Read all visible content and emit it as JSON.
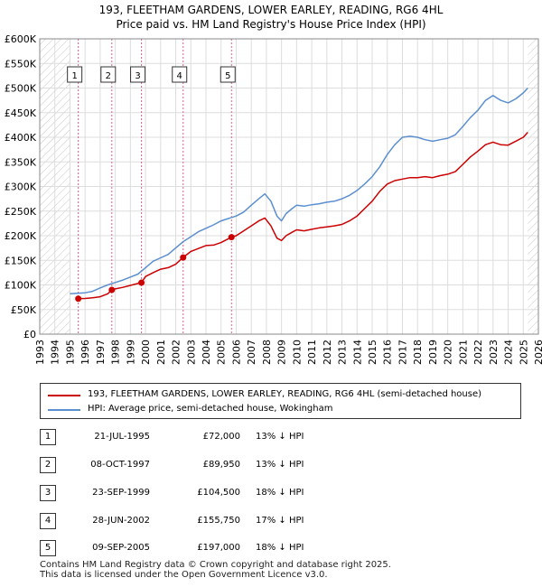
{
  "title_line1": "193, FLEETHAM GARDENS, LOWER EARLEY, READING, RG6 4HL",
  "title_line2": "Price paid vs. HM Land Registry's House Price Index (HPI)",
  "colors": {
    "property": "#cc0000",
    "hpi": "#5b8fcf",
    "hatch": "#c0c0c0",
    "marker_line": "#e06080"
  },
  "legend": {
    "property": "193, FLEETHAM GARDENS, LOWER EARLEY, READING, RG6 4HL (semi-detached house)",
    "hpi": "HPI: Average price, semi-detached house, Wokingham"
  },
  "transactions": [
    {
      "num": "1",
      "date": "21-JUL-1995",
      "price": "£72,000",
      "hpi": "13% ↓ HPI"
    },
    {
      "num": "2",
      "date": "08-OCT-1997",
      "price": "£89,950",
      "hpi": "13% ↓ HPI"
    },
    {
      "num": "3",
      "date": "23-SEP-1999",
      "price": "£104,500",
      "hpi": "18% ↓ HPI"
    },
    {
      "num": "4",
      "date": "28-JUN-2002",
      "price": "£155,750",
      "hpi": "17% ↓ HPI"
    },
    {
      "num": "5",
      "date": "09-SEP-2005",
      "price": "£197,000",
      "hpi": "18% ↓ HPI"
    }
  ],
  "footer_line1": "Contains HM Land Registry data © Crown copyright and database right 2025.",
  "footer_line2": "This data is licensed under the Open Government Licence v3.0.",
  "chart_data": {
    "type": "line",
    "title": "193, FLEETHAM GARDENS, LOWER EARLEY, READING, RG6 4HL",
    "subtitle": "Price paid vs. HM Land Registry's House Price Index (HPI)",
    "xlim": [
      1993,
      2026
    ],
    "ylim": [
      0,
      600000
    ],
    "x_ticks": [
      1993,
      1994,
      1995,
      1996,
      1997,
      1998,
      1999,
      2000,
      2001,
      2002,
      2003,
      2004,
      2005,
      2006,
      2007,
      2008,
      2009,
      2010,
      2011,
      2012,
      2013,
      2014,
      2015,
      2016,
      2017,
      2018,
      2019,
      2020,
      2021,
      2022,
      2023,
      2024,
      2025,
      2026
    ],
    "y_ticks": [
      0,
      50000,
      100000,
      150000,
      200000,
      250000,
      300000,
      350000,
      400000,
      450000,
      500000,
      550000,
      600000
    ],
    "y_tick_labels": [
      "£0",
      "£50K",
      "£100K",
      "£150K",
      "£200K",
      "£250K",
      "£300K",
      "£350K",
      "£400K",
      "£450K",
      "£500K",
      "£550K",
      "£600K"
    ],
    "hatched_ranges": [
      [
        1993,
        1995.0
      ],
      [
        2025.3,
        2026
      ]
    ],
    "grid": true,
    "series": [
      {
        "name": "193, FLEETHAM GARDENS, LOWER EARLEY, READING, RG6 4HL (semi-detached house)",
        "x": [
          1995.55,
          1996.0,
          1996.5,
          1997.0,
          1997.5,
          1997.77,
          1998.0,
          1998.5,
          1999.0,
          1999.5,
          1999.73,
          2000.0,
          2000.5,
          2001.0,
          2001.5,
          2002.0,
          2002.49,
          2003.0,
          2003.5,
          2004.0,
          2004.5,
          2005.0,
          2005.69,
          2006.0,
          2006.5,
          2007.0,
          2007.5,
          2007.9,
          2008.3,
          2008.7,
          2009.0,
          2009.3,
          2009.7,
          2010.0,
          2010.5,
          2011.0,
          2011.5,
          2012.0,
          2012.5,
          2013.0,
          2013.5,
          2014.0,
          2014.5,
          2015.0,
          2015.5,
          2016.0,
          2016.5,
          2017.0,
          2017.5,
          2018.0,
          2018.5,
          2019.0,
          2019.5,
          2020.0,
          2020.5,
          2021.0,
          2021.5,
          2022.0,
          2022.5,
          2023.0,
          2023.5,
          2024.0,
          2024.5,
          2025.0,
          2025.3
        ],
        "values": [
          72000,
          72500,
          74000,
          76000,
          82000,
          89950,
          92000,
          95000,
          99000,
          103000,
          104500,
          117000,
          125000,
          132000,
          135000,
          142000,
          155750,
          168000,
          174000,
          180000,
          181000,
          186000,
          197000,
          200000,
          210000,
          220000,
          230000,
          236000,
          220000,
          195000,
          190000,
          200000,
          207000,
          212000,
          210000,
          213000,
          216000,
          218000,
          220000,
          223000,
          230000,
          240000,
          255000,
          270000,
          290000,
          305000,
          312000,
          315000,
          318000,
          318000,
          320000,
          318000,
          322000,
          325000,
          330000,
          345000,
          360000,
          372000,
          385000,
          390000,
          385000,
          384000,
          392000,
          400000,
          410000
        ]
      },
      {
        "name": "HPI: Average price, semi-detached house, Wokingham",
        "x": [
          1995.0,
          1995.5,
          1996.0,
          1996.5,
          1997.0,
          1997.5,
          1998.0,
          1998.5,
          1999.0,
          1999.5,
          2000.0,
          2000.5,
          2001.0,
          2001.5,
          2002.0,
          2002.5,
          2003.0,
          2003.5,
          2004.0,
          2004.5,
          2005.0,
          2005.5,
          2006.0,
          2006.5,
          2007.0,
          2007.5,
          2007.9,
          2008.3,
          2008.7,
          2009.0,
          2009.3,
          2009.7,
          2010.0,
          2010.5,
          2011.0,
          2011.5,
          2012.0,
          2012.5,
          2013.0,
          2013.5,
          2014.0,
          2014.5,
          2015.0,
          2015.5,
          2016.0,
          2016.5,
          2017.0,
          2017.5,
          2018.0,
          2018.5,
          2019.0,
          2019.5,
          2020.0,
          2020.5,
          2021.0,
          2021.5,
          2022.0,
          2022.5,
          2023.0,
          2023.5,
          2024.0,
          2024.5,
          2025.0,
          2025.3
        ],
        "values": [
          82000,
          83000,
          84000,
          87000,
          94000,
          100000,
          105000,
          110000,
          116000,
          122000,
          135000,
          148000,
          155000,
          162000,
          175000,
          188000,
          198000,
          208000,
          215000,
          222000,
          230000,
          235000,
          240000,
          248000,
          262000,
          275000,
          285000,
          270000,
          240000,
          230000,
          245000,
          255000,
          262000,
          260000,
          263000,
          265000,
          268000,
          270000,
          275000,
          282000,
          292000,
          305000,
          320000,
          340000,
          365000,
          385000,
          400000,
          402000,
          400000,
          395000,
          392000,
          395000,
          398000,
          405000,
          422000,
          440000,
          455000,
          475000,
          485000,
          475000,
          470000,
          478000,
          490000,
          500000
        ]
      }
    ],
    "sales": [
      {
        "label": "1",
        "x": 1995.55,
        "value": 72000
      },
      {
        "label": "2",
        "x": 1997.77,
        "value": 89950
      },
      {
        "label": "3",
        "x": 1999.73,
        "value": 104500
      },
      {
        "label": "4",
        "x": 2002.49,
        "value": 155750
      },
      {
        "label": "5",
        "x": 2005.69,
        "value": 197000
      }
    ]
  }
}
